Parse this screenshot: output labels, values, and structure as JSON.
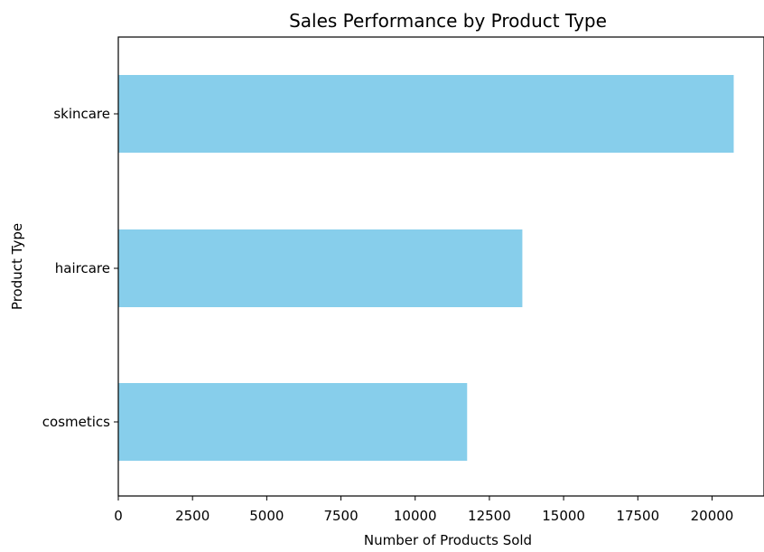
{
  "chart_data": {
    "type": "bar",
    "orientation": "horizontal",
    "title": "Sales Performance by Product Type",
    "xlabel": "Number of Products Sold",
    "ylabel": "Product Type",
    "categories": [
      "cosmetics",
      "haircare",
      "skincare"
    ],
    "values": [
      11750,
      13610,
      20730
    ],
    "xlim": [
      0,
      21750
    ],
    "x_ticks": [
      0,
      2500,
      5000,
      7500,
      10000,
      12500,
      15000,
      17500,
      20000
    ],
    "bar_color": "#87ceeb",
    "grid": false,
    "legend": "none"
  }
}
